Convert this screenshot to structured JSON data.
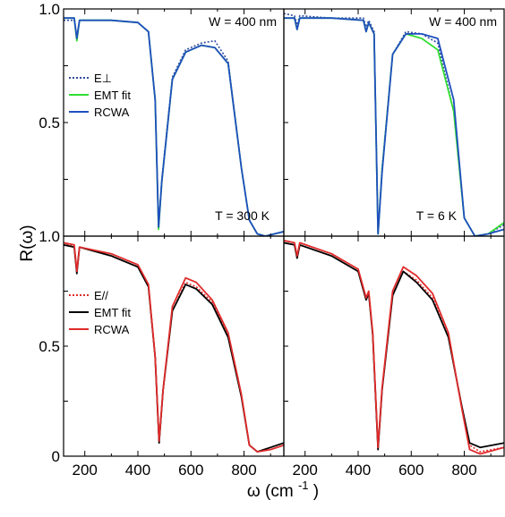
{
  "figure": {
    "xlabel": "ω (cm",
    "xlabel_sup": "-1",
    "xlabel_close": ")",
    "ylabel": "R(ω)"
  },
  "colors": {
    "blue_dot": "#2f4aa0",
    "green": "#33dd33",
    "blue": "#1f4fbf",
    "red": "#e02a2a",
    "black": "#000000"
  },
  "chart_data": [
    {
      "type": "line",
      "panel": "top-left",
      "xlim": [
        120,
        950
      ],
      "ylim": [
        0,
        1.0
      ],
      "yticks": [
        "1.0",
        "0.5"
      ],
      "xticks": [],
      "annotations": [
        "W = 400 nm",
        "T = 300 K"
      ],
      "legend_position": "center-left",
      "series": [
        {
          "name": "E⊥",
          "style": "dotted",
          "color": "#2f4aa0",
          "points": [
            [
              120,
              0.95
            ],
            [
              160,
              0.95
            ],
            [
              170,
              0.88
            ],
            [
              180,
              0.95
            ],
            [
              300,
              0.95
            ],
            [
              400,
              0.94
            ],
            [
              440,
              0.9
            ],
            [
              465,
              0.6
            ],
            [
              478,
              0.04
            ],
            [
              490,
              0.25
            ],
            [
              530,
              0.7
            ],
            [
              580,
              0.82
            ],
            [
              640,
              0.85
            ],
            [
              690,
              0.86
            ],
            [
              740,
              0.77
            ],
            [
              790,
              0.3
            ],
            [
              820,
              0.07
            ],
            [
              850,
              0.01
            ],
            [
              880,
              0.0
            ],
            [
              950,
              0.02
            ]
          ]
        },
        {
          "name": "EMT fit",
          "style": "solid",
          "color": "#33dd33",
          "points": [
            [
              120,
              0.96
            ],
            [
              160,
              0.96
            ],
            [
              170,
              0.86
            ],
            [
              180,
              0.95
            ],
            [
              300,
              0.95
            ],
            [
              400,
              0.94
            ],
            [
              440,
              0.9
            ],
            [
              465,
              0.6
            ],
            [
              478,
              0.03
            ],
            [
              490,
              0.24
            ],
            [
              530,
              0.69
            ],
            [
              580,
              0.81
            ],
            [
              640,
              0.84
            ],
            [
              690,
              0.83
            ],
            [
              740,
              0.76
            ],
            [
              790,
              0.3
            ],
            [
              820,
              0.07
            ],
            [
              850,
              0.01
            ],
            [
              880,
              0.0
            ],
            [
              950,
              0.02
            ]
          ]
        },
        {
          "name": "RCWA",
          "style": "solid",
          "color": "#1f4fbf",
          "points": [
            [
              120,
              0.96
            ],
            [
              160,
              0.96
            ],
            [
              170,
              0.87
            ],
            [
              180,
              0.95
            ],
            [
              300,
              0.95
            ],
            [
              400,
              0.94
            ],
            [
              440,
              0.9
            ],
            [
              465,
              0.6
            ],
            [
              478,
              0.04
            ],
            [
              490,
              0.24
            ],
            [
              530,
              0.69
            ],
            [
              580,
              0.81
            ],
            [
              640,
              0.84
            ],
            [
              690,
              0.83
            ],
            [
              740,
              0.76
            ],
            [
              790,
              0.3
            ],
            [
              820,
              0.07
            ],
            [
              850,
              0.01
            ],
            [
              880,
              0.0
            ],
            [
              950,
              0.02
            ]
          ]
        }
      ]
    },
    {
      "type": "line",
      "panel": "top-right",
      "xlim": [
        120,
        950
      ],
      "ylim": [
        0,
        1.0
      ],
      "yticks": [],
      "xticks": [],
      "annotations": [
        "W = 400 nm",
        "T = 6 K"
      ],
      "series": [
        {
          "name": "E⊥",
          "style": "dotted",
          "color": "#2f4aa0",
          "points": [
            [
              120,
              0.98
            ],
            [
              160,
              0.97
            ],
            [
              170,
              0.93
            ],
            [
              180,
              0.97
            ],
            [
              300,
              0.96
            ],
            [
              420,
              0.96
            ],
            [
              430,
              0.92
            ],
            [
              440,
              0.95
            ],
            [
              460,
              0.9
            ],
            [
              475,
              0.01
            ],
            [
              490,
              0.3
            ],
            [
              530,
              0.8
            ],
            [
              580,
              0.9
            ],
            [
              640,
              0.89
            ],
            [
              700,
              0.85
            ],
            [
              760,
              0.55
            ],
            [
              800,
              0.08
            ],
            [
              840,
              0.0
            ],
            [
              890,
              0.01
            ],
            [
              950,
              0.05
            ]
          ]
        },
        {
          "name": "EMT fit",
          "style": "solid",
          "color": "#33dd33",
          "points": [
            [
              120,
              0.96
            ],
            [
              160,
              0.96
            ],
            [
              170,
              0.91
            ],
            [
              180,
              0.96
            ],
            [
              300,
              0.96
            ],
            [
              420,
              0.95
            ],
            [
              430,
              0.9
            ],
            [
              440,
              0.94
            ],
            [
              460,
              0.89
            ],
            [
              475,
              0.01
            ],
            [
              490,
              0.29
            ],
            [
              530,
              0.8
            ],
            [
              580,
              0.89
            ],
            [
              640,
              0.87
            ],
            [
              700,
              0.82
            ],
            [
              760,
              0.55
            ],
            [
              800,
              0.08
            ],
            [
              840,
              0.0
            ],
            [
              890,
              0.01
            ],
            [
              950,
              0.06
            ]
          ]
        },
        {
          "name": "RCWA",
          "style": "solid",
          "color": "#1f4fbf",
          "points": [
            [
              120,
              0.96
            ],
            [
              160,
              0.96
            ],
            [
              170,
              0.91
            ],
            [
              180,
              0.96
            ],
            [
              300,
              0.96
            ],
            [
              420,
              0.95
            ],
            [
              430,
              0.9
            ],
            [
              440,
              0.94
            ],
            [
              460,
              0.89
            ],
            [
              475,
              0.01
            ],
            [
              490,
              0.28
            ],
            [
              530,
              0.8
            ],
            [
              580,
              0.89
            ],
            [
              640,
              0.89
            ],
            [
              700,
              0.87
            ],
            [
              760,
              0.6
            ],
            [
              800,
              0.08
            ],
            [
              840,
              0.0
            ],
            [
              890,
              0.01
            ],
            [
              950,
              0.03
            ]
          ]
        }
      ]
    },
    {
      "type": "line",
      "panel": "bottom-left",
      "xlim": [
        120,
        950
      ],
      "ylim": [
        0,
        1.0
      ],
      "yticks": [
        "1.0",
        "0.5",
        "0"
      ],
      "xticks": [
        "200",
        "400",
        "600",
        "800"
      ],
      "legend_position": "center-left",
      "series": [
        {
          "name": "E//",
          "style": "dotted",
          "color": "#e02a2a",
          "points": [
            [
              120,
              0.97
            ],
            [
              160,
              0.95
            ],
            [
              170,
              0.85
            ],
            [
              180,
              0.95
            ],
            [
              300,
              0.91
            ],
            [
              400,
              0.86
            ],
            [
              440,
              0.77
            ],
            [
              465,
              0.45
            ],
            [
              480,
              0.06
            ],
            [
              495,
              0.3
            ],
            [
              530,
              0.66
            ],
            [
              580,
              0.79
            ],
            [
              620,
              0.77
            ],
            [
              680,
              0.7
            ],
            [
              740,
              0.55
            ],
            [
              790,
              0.27
            ],
            [
              820,
              0.05
            ],
            [
              850,
              0.02
            ],
            [
              900,
              0.04
            ],
            [
              950,
              0.06
            ]
          ]
        },
        {
          "name": "EMT fit",
          "style": "solid",
          "color": "#000000",
          "points": [
            [
              120,
              0.96
            ],
            [
              160,
              0.95
            ],
            [
              170,
              0.83
            ],
            [
              180,
              0.95
            ],
            [
              300,
              0.91
            ],
            [
              400,
              0.86
            ],
            [
              440,
              0.77
            ],
            [
              465,
              0.45
            ],
            [
              480,
              0.06
            ],
            [
              495,
              0.3
            ],
            [
              530,
              0.66
            ],
            [
              580,
              0.78
            ],
            [
              620,
              0.76
            ],
            [
              680,
              0.69
            ],
            [
              740,
              0.54
            ],
            [
              790,
              0.27
            ],
            [
              820,
              0.05
            ],
            [
              850,
              0.02
            ],
            [
              900,
              0.04
            ],
            [
              950,
              0.06
            ]
          ]
        },
        {
          "name": "RCWA",
          "style": "solid",
          "color": "#e02a2a",
          "points": [
            [
              120,
              0.97
            ],
            [
              160,
              0.96
            ],
            [
              170,
              0.84
            ],
            [
              180,
              0.95
            ],
            [
              300,
              0.92
            ],
            [
              400,
              0.87
            ],
            [
              440,
              0.78
            ],
            [
              465,
              0.45
            ],
            [
              480,
              0.07
            ],
            [
              495,
              0.3
            ],
            [
              530,
              0.68
            ],
            [
              580,
              0.81
            ],
            [
              620,
              0.79
            ],
            [
              680,
              0.71
            ],
            [
              740,
              0.56
            ],
            [
              790,
              0.28
            ],
            [
              820,
              0.05
            ],
            [
              850,
              0.02
            ],
            [
              900,
              0.03
            ],
            [
              950,
              0.05
            ]
          ]
        }
      ]
    },
    {
      "type": "line",
      "panel": "bottom-right",
      "xlim": [
        120,
        950
      ],
      "ylim": [
        0,
        1.0
      ],
      "yticks": [],
      "xticks": [
        "200",
        "400",
        "600",
        "800"
      ],
      "series": [
        {
          "name": "E//",
          "style": "dotted",
          "color": "#e02a2a",
          "points": [
            [
              120,
              0.97
            ],
            [
              160,
              0.96
            ],
            [
              170,
              0.9
            ],
            [
              180,
              0.96
            ],
            [
              300,
              0.91
            ],
            [
              400,
              0.84
            ],
            [
              430,
              0.72
            ],
            [
              440,
              0.74
            ],
            [
              455,
              0.55
            ],
            [
              475,
              0.03
            ],
            [
              490,
              0.3
            ],
            [
              530,
              0.73
            ],
            [
              570,
              0.84
            ],
            [
              620,
              0.8
            ],
            [
              680,
              0.72
            ],
            [
              740,
              0.54
            ],
            [
              790,
              0.23
            ],
            [
              820,
              0.05
            ],
            [
              860,
              0.02
            ],
            [
              950,
              0.04
            ]
          ]
        },
        {
          "name": "EMT fit",
          "style": "solid",
          "color": "#000000",
          "points": [
            [
              120,
              0.97
            ],
            [
              160,
              0.96
            ],
            [
              170,
              0.9
            ],
            [
              180,
              0.96
            ],
            [
              300,
              0.91
            ],
            [
              400,
              0.84
            ],
            [
              430,
              0.71
            ],
            [
              440,
              0.74
            ],
            [
              455,
              0.55
            ],
            [
              475,
              0.03
            ],
            [
              490,
              0.3
            ],
            [
              530,
              0.73
            ],
            [
              570,
              0.84
            ],
            [
              620,
              0.79
            ],
            [
              680,
              0.71
            ],
            [
              740,
              0.54
            ],
            [
              790,
              0.23
            ],
            [
              820,
              0.06
            ],
            [
              860,
              0.04
            ],
            [
              950,
              0.06
            ]
          ]
        },
        {
          "name": "RCWA",
          "style": "solid",
          "color": "#e02a2a",
          "points": [
            [
              120,
              0.98
            ],
            [
              160,
              0.97
            ],
            [
              170,
              0.91
            ],
            [
              180,
              0.97
            ],
            [
              300,
              0.92
            ],
            [
              400,
              0.85
            ],
            [
              430,
              0.72
            ],
            [
              440,
              0.75
            ],
            [
              455,
              0.56
            ],
            [
              475,
              0.04
            ],
            [
              490,
              0.31
            ],
            [
              530,
              0.75
            ],
            [
              570,
              0.86
            ],
            [
              620,
              0.82
            ],
            [
              680,
              0.74
            ],
            [
              740,
              0.56
            ],
            [
              790,
              0.22
            ],
            [
              820,
              0.03
            ],
            [
              860,
              0.01
            ],
            [
              950,
              0.04
            ]
          ]
        }
      ]
    }
  ]
}
